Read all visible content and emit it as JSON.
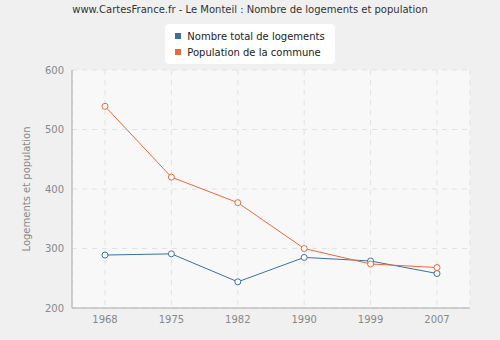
{
  "chart_data": {
    "type": "line",
    "title": "www.CartesFrance.fr - Le Monteil : Nombre de logements et population",
    "y_label": "Logements et population",
    "categories": [
      "1968",
      "1975",
      "1982",
      "1990",
      "1999",
      "2007"
    ],
    "series": [
      {
        "name": "Nombre total de logements",
        "color": "#3e6fa0",
        "marker": "circle",
        "values": [
          289,
          291,
          244,
          285,
          279,
          258
        ]
      },
      {
        "name": "Population de la commune",
        "color": "#e8693a",
        "marker": "circle",
        "values": [
          539,
          420,
          377,
          300,
          274,
          268
        ]
      }
    ],
    "ylim": [
      200,
      600
    ],
    "yticks": [
      200,
      300,
      400,
      500,
      600
    ],
    "grid": true,
    "legend": "top"
  }
}
